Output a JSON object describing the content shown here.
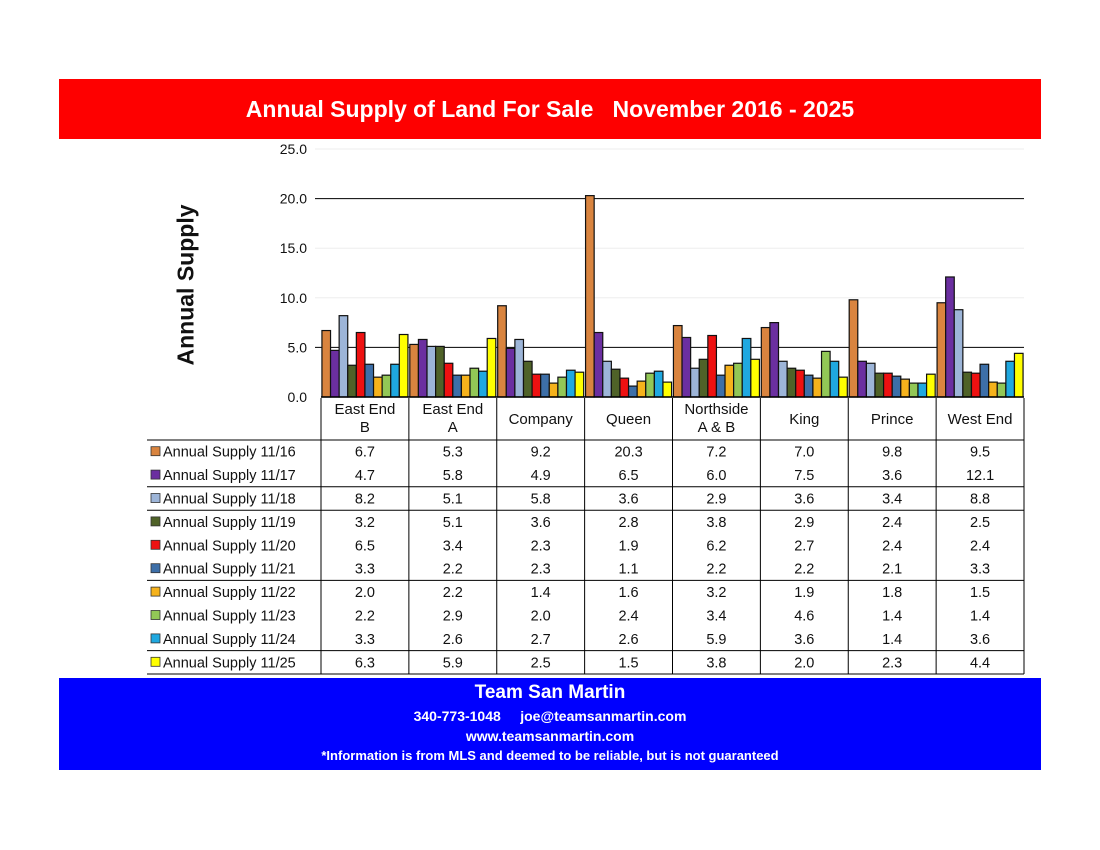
{
  "header": {
    "title": "Annual Supply of Land For Sale   November 2016 - 2025"
  },
  "footer": {
    "team": "Team San Martin",
    "contact": "340-773-1048     joe@teamsanmartin.com",
    "website": "www.teamsanmartin.com",
    "disclaimer": "*Information is from MLS and deemed to be reliable, but is not guaranteed"
  },
  "chart_data": {
    "type": "bar",
    "title": "Annual Supply of Land For Sale   November 2016 - 2025",
    "xlabel": "",
    "ylabel": "Annual Supply",
    "ylim": [
      0,
      25
    ],
    "yticks": [
      "0.0",
      "5.0",
      "10.0",
      "15.0",
      "20.0",
      "25.0"
    ],
    "grid": true,
    "legend": "table-left",
    "categories": [
      "East End\nB",
      "East End\nA",
      "Company",
      "Queen",
      "Northside\nA & B",
      "King",
      "Prince",
      "West End"
    ],
    "series": [
      {
        "name": "Annual Supply 11/16",
        "color": "#d9843f",
        "values": [
          6.7,
          5.3,
          9.2,
          20.3,
          7.2,
          7.0,
          9.8,
          9.5
        ]
      },
      {
        "name": "Annual Supply 11/17",
        "color": "#6b2fa0",
        "values": [
          4.7,
          5.8,
          4.9,
          6.5,
          6.0,
          7.5,
          3.6,
          12.1
        ]
      },
      {
        "name": "Annual Supply 11/18",
        "color": "#9db5d8",
        "values": [
          8.2,
          5.1,
          5.8,
          3.6,
          2.9,
          3.6,
          3.4,
          8.8
        ]
      },
      {
        "name": "Annual Supply 11/19",
        "color": "#4f6228",
        "values": [
          3.2,
          5.1,
          3.6,
          2.8,
          3.8,
          2.9,
          2.4,
          2.5
        ]
      },
      {
        "name": "Annual Supply 11/20",
        "color": "#ee1111",
        "values": [
          6.5,
          3.4,
          2.3,
          1.9,
          6.2,
          2.7,
          2.4,
          2.4
        ]
      },
      {
        "name": "Annual Supply 11/21",
        "color": "#3d6fa8",
        "values": [
          3.3,
          2.2,
          2.3,
          1.1,
          2.2,
          2.2,
          2.1,
          3.3
        ]
      },
      {
        "name": "Annual Supply 11/22",
        "color": "#f5b21c",
        "values": [
          2.0,
          2.2,
          1.4,
          1.6,
          3.2,
          1.9,
          1.8,
          1.5
        ]
      },
      {
        "name": "Annual Supply 11/23",
        "color": "#92c756",
        "values": [
          2.2,
          2.9,
          2.0,
          2.4,
          3.4,
          4.6,
          1.4,
          1.4
        ]
      },
      {
        "name": "Annual Supply 11/24",
        "color": "#1fa8e0",
        "values": [
          3.3,
          2.6,
          2.7,
          2.6,
          5.9,
          3.6,
          1.4,
          3.6
        ]
      },
      {
        "name": "Annual Supply 11/25",
        "color": "#ffff00",
        "values": [
          6.3,
          5.9,
          2.5,
          1.5,
          3.8,
          2.0,
          2.3,
          4.4
        ]
      }
    ]
  }
}
